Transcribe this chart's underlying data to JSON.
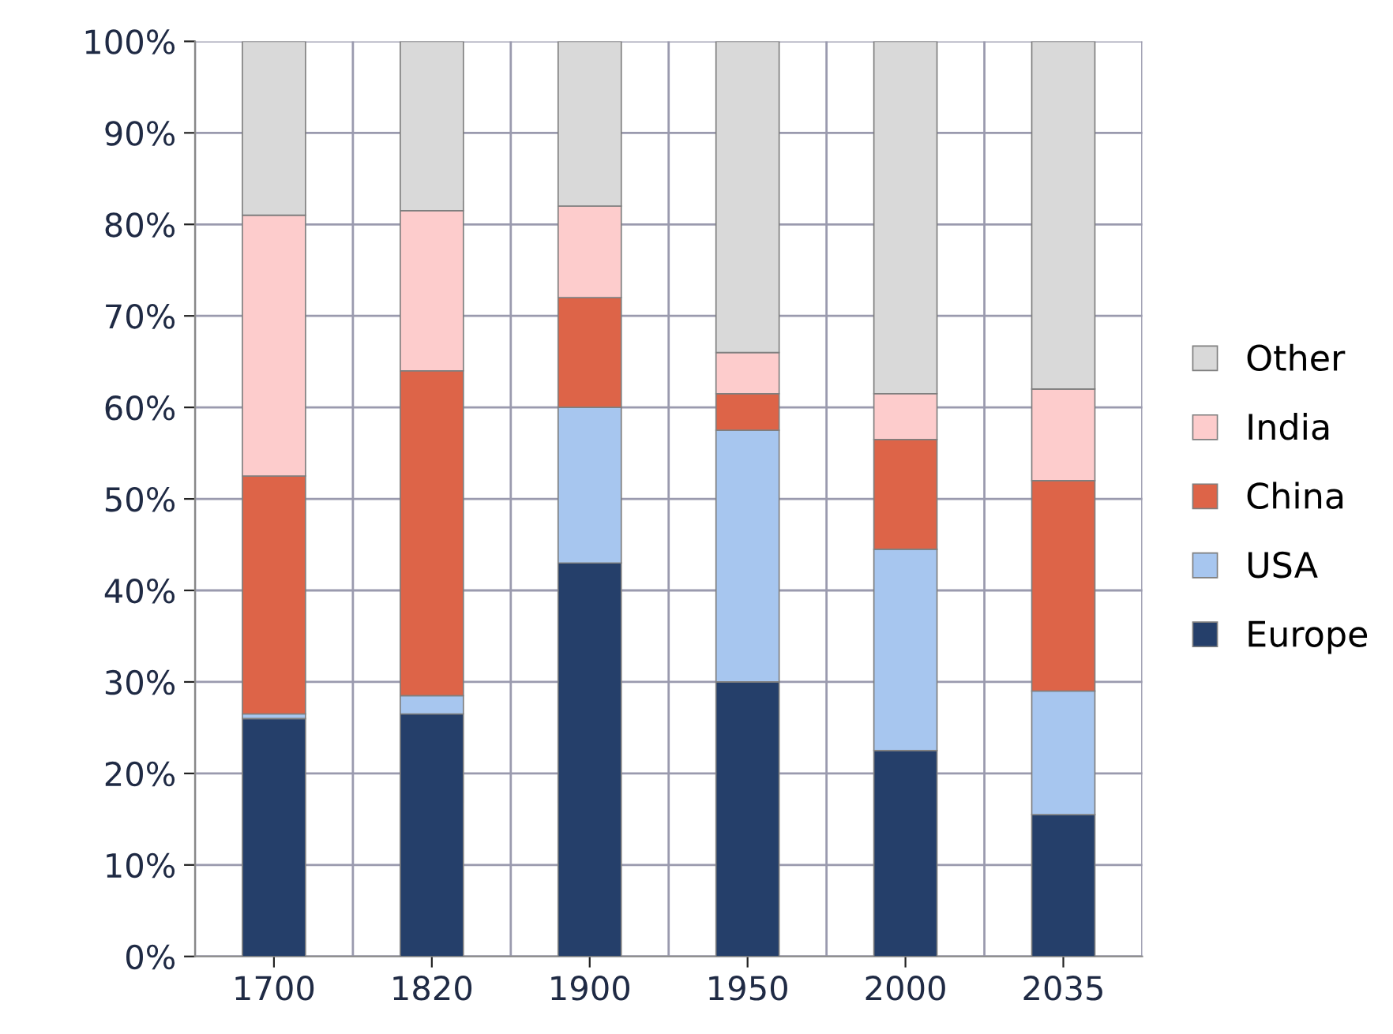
{
  "chart_data": {
    "type": "bar",
    "stacked": true,
    "categories": [
      "1700",
      "1820",
      "1900",
      "1950",
      "2000",
      "2035"
    ],
    "series": [
      {
        "name": "Europe",
        "color": "#253f6a",
        "values": [
          26,
          26.5,
          43,
          30,
          22.5,
          15.5
        ]
      },
      {
        "name": "USA",
        "color": "#a7c6ef",
        "values": [
          0.5,
          2,
          17,
          27.5,
          22,
          13.5
        ]
      },
      {
        "name": "China",
        "color": "#dd6448",
        "values": [
          26,
          35.5,
          12,
          4,
          12,
          23
        ]
      },
      {
        "name": "India",
        "color": "#fdcccc",
        "values": [
          28.5,
          17.5,
          10,
          4.5,
          5,
          10
        ]
      },
      {
        "name": "Other",
        "color": "#d9d9d9",
        "values": [
          19,
          18.5,
          18,
          34,
          38.5,
          38
        ]
      }
    ],
    "ylim": [
      0,
      100
    ],
    "yticks": [
      {
        "value": 0,
        "label": "0%"
      },
      {
        "value": 10,
        "label": "10%"
      },
      {
        "value": 20,
        "label": "20%"
      },
      {
        "value": 30,
        "label": "30%"
      },
      {
        "value": 40,
        "label": "40%"
      },
      {
        "value": 50,
        "label": "50%"
      },
      {
        "value": 60,
        "label": "60%"
      },
      {
        "value": 70,
        "label": "70%"
      },
      {
        "value": 80,
        "label": "80%"
      },
      {
        "value": 90,
        "label": "90%"
      },
      {
        "value": 100,
        "label": "100%"
      }
    ],
    "grid": true,
    "legend": "right"
  }
}
